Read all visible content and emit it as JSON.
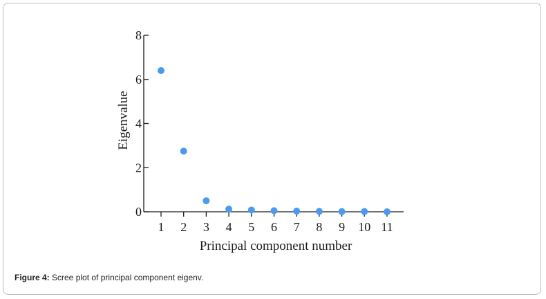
{
  "figure": {
    "caption_label": "Figure 4:",
    "caption_text": " Scree plot of principal component eigenv."
  },
  "chart_data": {
    "type": "scatter",
    "xlabel": "Principal component number",
    "ylabel": "Eigenvalue",
    "x": [
      1,
      2,
      3,
      4,
      5,
      6,
      7,
      8,
      9,
      10,
      11
    ],
    "y": [
      6.4,
      2.75,
      0.5,
      0.12,
      0.08,
      0.05,
      0.03,
      0.02,
      0.01,
      0.01,
      0.0
    ],
    "xticks": [
      "1",
      "2",
      "3",
      "4",
      "5",
      "6",
      "7",
      "8",
      "9",
      "10",
      "11"
    ],
    "yticks": [
      "0",
      "2",
      "4",
      "6",
      "8"
    ],
    "ylim": [
      0,
      8
    ],
    "grid": false,
    "point_color": "#4a9bf0"
  }
}
